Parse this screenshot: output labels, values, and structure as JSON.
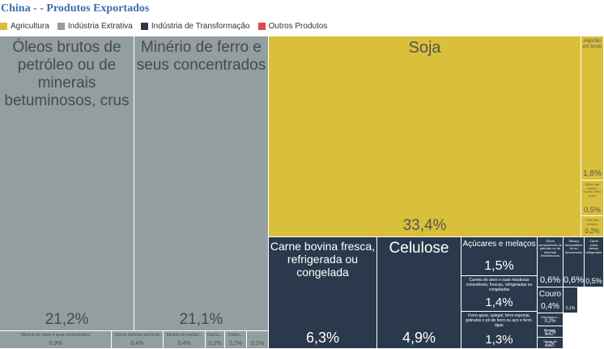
{
  "chart_data": {
    "type": "treemap",
    "title": "China - - Produtos Exportados",
    "legend": [
      {
        "name": "Agricultura",
        "color": "#d9bf3a"
      },
      {
        "name": "Indústria Extrativa",
        "color": "#929e9f"
      },
      {
        "name": "Indústria de Transformação",
        "color": "#2a3a4c"
      },
      {
        "name": "Outros Produtos",
        "color": "#e04848"
      }
    ],
    "tiles": [
      {
        "name": "Óleos brutos de petróleo ou de minerais betuminosos, crus",
        "value": "21,2%",
        "category": "Indústria Extrativa"
      },
      {
        "name": "Minério de ferro e seus concentrados",
        "value": "21,1%",
        "category": "Indústria Extrativa"
      },
      {
        "name": "Minério de cobre e seus concentrados",
        "value": "0,9%",
        "category": "Indústria Extrativa"
      },
      {
        "name": "Outros minerais em bruto",
        "value": "0,4%",
        "category": "Indústria Extrativa"
      },
      {
        "name": "Minério de metais...",
        "value": "0,4%",
        "category": "Indústria Extrativa"
      },
      {
        "name": "Outros...",
        "value": "0,2%",
        "category": "Indústria Extrativa"
      },
      {
        "name": "Pedra...",
        "value": "0,2%",
        "category": "Indústria Extrativa"
      },
      {
        "name": "",
        "value": "0,1%",
        "category": "Indústria Extrativa"
      },
      {
        "name": "Soja",
        "value": "33,4%",
        "category": "Agricultura"
      },
      {
        "name": "Algodão em bruto",
        "value": "1,8%",
        "category": "Agricultura"
      },
      {
        "name": "Milho não moído, exceto milho doce",
        "value": "0,5%",
        "category": "Agricultura"
      },
      {
        "name": "Café não torrado",
        "value": "0,2%",
        "category": "Agricultura"
      },
      {
        "name": "Carne bovina fresca, refrigerada ou congelada",
        "value": "6,3%",
        "category": "Indústria de Transformação"
      },
      {
        "name": "Celulose",
        "value": "4,9%",
        "category": "Indústria de Transformação"
      },
      {
        "name": "Açúcares e melaços",
        "value": "1,5%",
        "category": "Indústria de Transformação"
      },
      {
        "name": "Carnes de aves e suas miudezas comestíveis, frescas, refrigeradas ou congeladas",
        "value": "1,4%",
        "category": "Indústria de Transformação"
      },
      {
        "name": "Ferro-gusa, spiegel, ferro-esponja, grânulos e pó de ferro ou aço e ferro-ligas",
        "value": "1,3%",
        "category": "Indústria de Transformação"
      },
      {
        "name": "Óleos combustíveis de petróleo ou de minerais betuminosos",
        "value": "0,6%",
        "category": "Indústria de Transformação"
      },
      {
        "name": "Tabaco descaulificado ou desnervado",
        "value": "0,6%",
        "category": "Indústria de Transformação"
      },
      {
        "name": "Carne suína fresca, refrigerada...",
        "value": "0,5%",
        "category": "Indústria de Transformação"
      },
      {
        "name": "Couro",
        "value": "0,4%",
        "category": "Indústria de Transformação"
      },
      {
        "name": "",
        "value": "0,1%",
        "category": "Indústria de Transformação"
      },
      {
        "name": "Gorduras e...",
        "value": "0,2%",
        "category": "Indústria de Transformação"
      },
      {
        "name": "Resinas, tendo...",
        "value": "0,2%",
        "category": "Indústria de Transformação"
      },
      {
        "name": "Sucos de frutas...",
        "value": "0,2%",
        "category": "Indústria de Transformação"
      }
    ]
  }
}
